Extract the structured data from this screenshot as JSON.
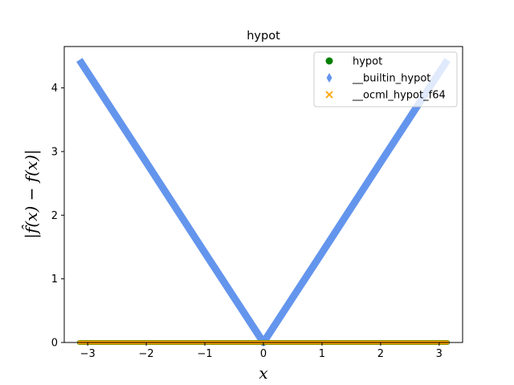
{
  "chart_data": {
    "type": "scatter",
    "title": "hypot",
    "xlabel": "x",
    "ylabel": "|f̂(x) − f(x)|",
    "xlim": [
      -3.4,
      3.4
    ],
    "ylim": [
      0,
      4.65
    ],
    "xticks": [
      -3,
      -2,
      -1,
      0,
      1,
      2,
      3
    ],
    "xtick_labels": [
      "−3",
      "−2",
      "−1",
      "0",
      "1",
      "2",
      "3"
    ],
    "yticks": [
      0,
      1,
      2,
      3,
      4
    ],
    "ytick_labels": [
      "0",
      "1",
      "2",
      "3",
      "4"
    ],
    "grid": false,
    "legend_position": "top-right",
    "series": [
      {
        "name": "hypot",
        "marker": "circle",
        "color": "#008000",
        "x": [
          -3.14159,
          0,
          3.14159
        ],
        "y": [
          0,
          0,
          0
        ]
      },
      {
        "name": "__builtin_hypot",
        "marker": "diamond",
        "color": "#6495ed",
        "x": [
          -3.14159,
          -2,
          -1,
          0,
          1,
          2,
          3.14159
        ],
        "y": [
          4.44,
          2.83,
          1.41,
          0,
          1.41,
          2.83,
          4.44
        ]
      },
      {
        "name": "__ocml_hypot_f64",
        "marker": "x",
        "color": "#ffa500",
        "x": [
          -3.14159,
          0,
          3.14159
        ],
        "y": [
          0,
          0,
          0
        ]
      }
    ]
  }
}
